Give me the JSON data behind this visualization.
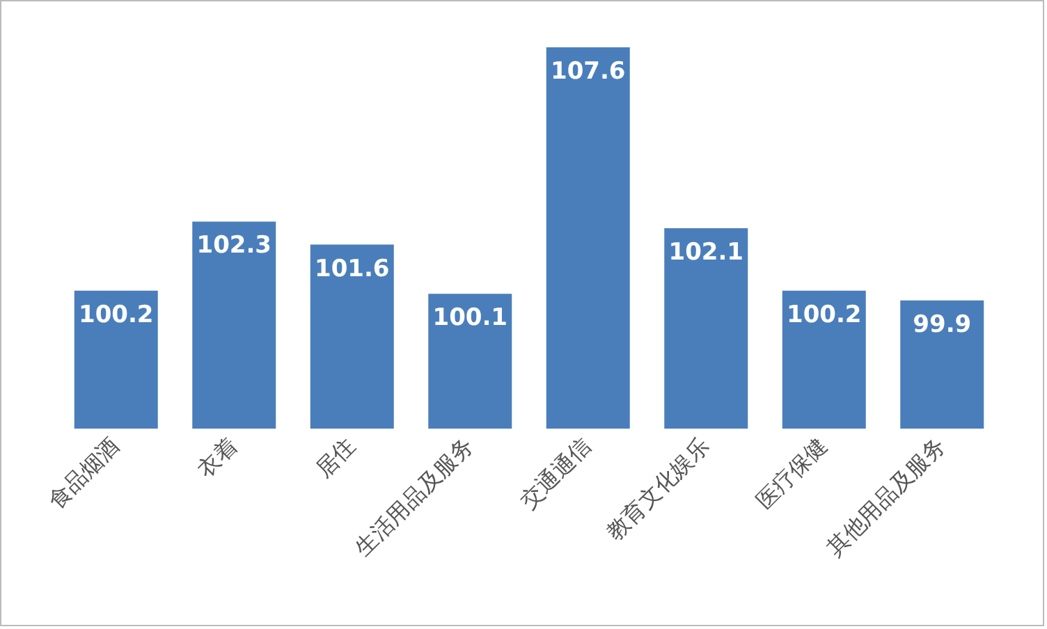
{
  "chart_data": {
    "type": "bar",
    "categories": [
      "食品烟酒",
      "衣着",
      "居住",
      "生活用品及服务",
      "交通通信",
      "教育文化娱乐",
      "医疗保健",
      "其他用品及服务"
    ],
    "values": [
      100.2,
      102.3,
      101.6,
      100.1,
      107.6,
      102.1,
      100.2,
      99.9
    ],
    "color": "#4a7ebb",
    "ylim": [
      96,
      109
    ],
    "data_labels": true,
    "tick_labels": "x"
  }
}
